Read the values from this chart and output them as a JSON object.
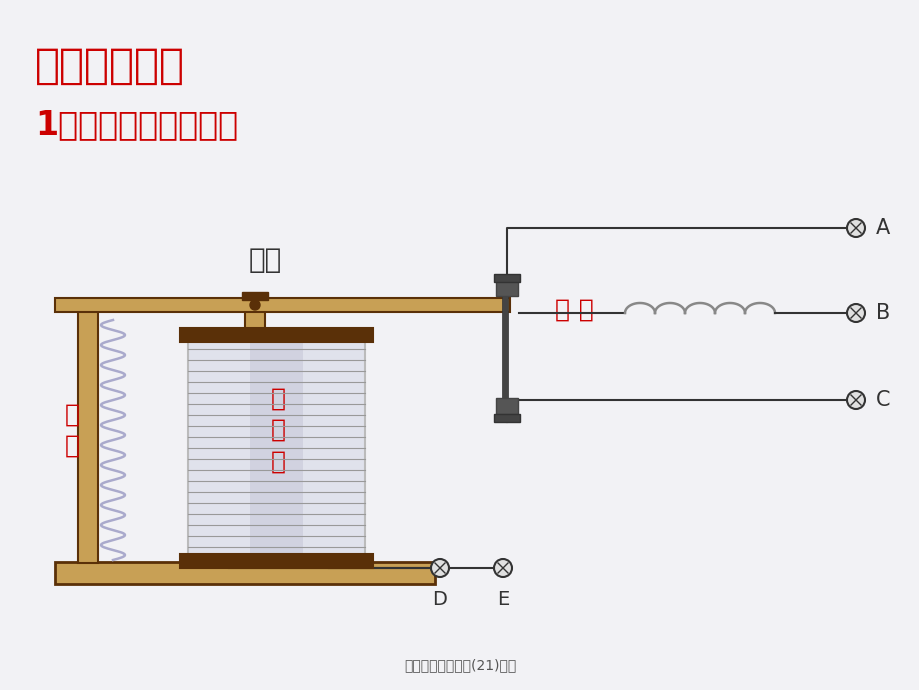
{
  "bg_color": "#f2f2f5",
  "title1": "三、新课教学",
  "title2": "1、电磁继电器的构造",
  "title1_color": "#cc0000",
  "title2_color": "#cc0000",
  "label_衔铁": "衔铁",
  "label_弹簧": "弹\n簧",
  "label_电磁铁": "电\n磁\n铁",
  "label_触点": "触 点",
  "label_A": "A",
  "label_B": "B",
  "label_C": "C",
  "label_D": "D",
  "label_E": "E",
  "label_color_red": "#cc0000",
  "label_color_dark": "#444444",
  "footer": "电磁继电器扬声器(21)课件",
  "wood_color": "#c8a055",
  "dark_brown": "#5a3008",
  "line_color": "#333333",
  "spring_color": "#aaaaaa",
  "coil_bg": "#dde0e8",
  "coil_line": "#999999"
}
